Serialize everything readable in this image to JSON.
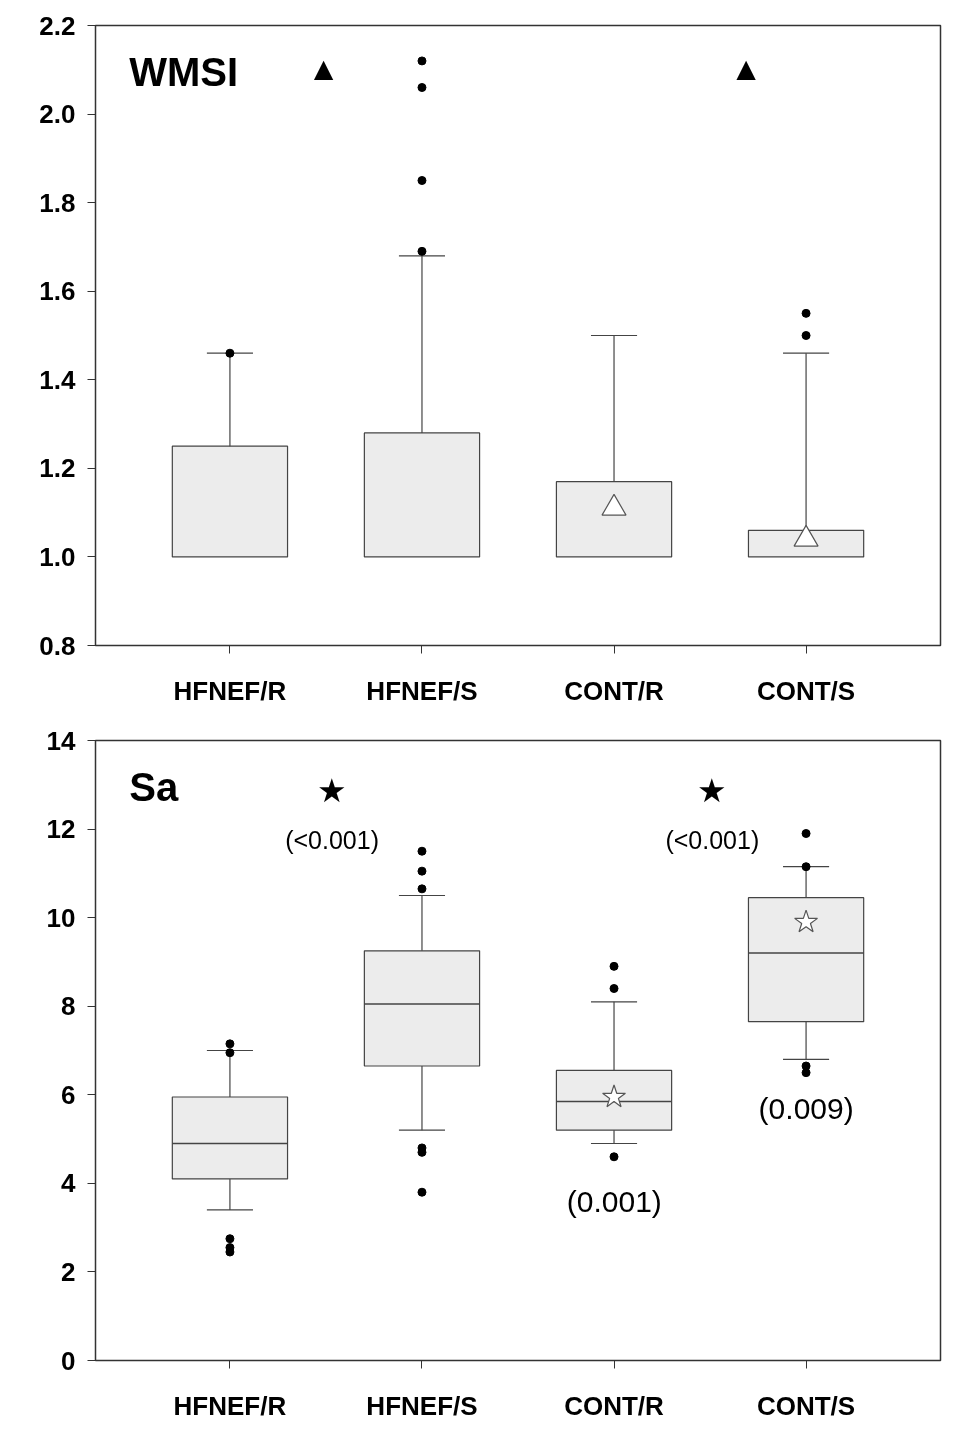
{
  "chart_data": [
    {
      "type": "box",
      "title": "WMSI",
      "categories": [
        "HFNEF/R",
        "HFNEF/S",
        "CONT/R",
        "CONT/S"
      ],
      "ylim": [
        0.8,
        2.2
      ],
      "yticks": [
        {
          "value": 0.8,
          "label": "0.8"
        },
        {
          "value": 1.0,
          "label": "1.0"
        },
        {
          "value": 1.2,
          "label": "1.2"
        },
        {
          "value": 1.4,
          "label": "1.4"
        },
        {
          "value": 1.6,
          "label": "1.6"
        },
        {
          "value": 1.8,
          "label": "1.8"
        },
        {
          "value": 2.0,
          "label": "2.0"
        },
        {
          "value": 2.2,
          "label": "2.2"
        }
      ],
      "grid": false,
      "marker": "triangle",
      "boxes": [
        {
          "low": 1.0,
          "q1": 1.0,
          "median": 1.0,
          "q3": 1.25,
          "high": 1.46,
          "outliers": [
            1.46
          ]
        },
        {
          "low": 1.0,
          "q1": 1.0,
          "median": 1.0,
          "q3": 1.28,
          "high": 1.68,
          "outliers": [
            1.69,
            1.85,
            2.06,
            2.12
          ]
        },
        {
          "low": 1.0,
          "q1": 1.0,
          "median": 1.0,
          "q3": 1.17,
          "high": 1.5,
          "mean": 1.11
        },
        {
          "low": 1.0,
          "q1": 1.0,
          "median": 1.0,
          "q3": 1.06,
          "high": 1.46,
          "mean": 1.04,
          "outliers": [
            1.5,
            1.55
          ]
        }
      ],
      "annotations": [
        "▲",
        "▲"
      ]
    },
    {
      "type": "box",
      "title": "Sa",
      "categories": [
        "HFNEF/R",
        "HFNEF/S",
        "CONT/R",
        "CONT/S"
      ],
      "ylim": [
        0,
        14
      ],
      "yticks": [
        0,
        2,
        4,
        6,
        8,
        10,
        12,
        14
      ],
      "grid": false,
      "marker": "star",
      "boxes": [
        {
          "low": 3.4,
          "q1": 4.1,
          "median": 4.9,
          "q3": 5.95,
          "high": 7.0,
          "outliers": [
            7.15,
            6.95,
            2.75,
            2.55,
            2.45
          ]
        },
        {
          "low": 5.2,
          "q1": 6.65,
          "median": 8.05,
          "q3": 9.25,
          "high": 10.5,
          "outliers": [
            11.5,
            11.05,
            10.65,
            4.8,
            4.7,
            3.8
          ]
        },
        {
          "low": 4.9,
          "q1": 5.2,
          "median": 5.85,
          "q3": 6.55,
          "high": 8.1,
          "mean": 5.95,
          "outliers": [
            8.9,
            8.4,
            4.6
          ]
        },
        {
          "low": 6.8,
          "q1": 7.65,
          "median": 9.2,
          "q3": 10.45,
          "high": 11.15,
          "mean": 9.9,
          "outliers": [
            11.9,
            11.15,
            6.65,
            6.5
          ]
        }
      ],
      "annotations": [
        "★",
        "(<0.001)",
        "★",
        "(<0.001)",
        "(0.001)",
        "(0.009)"
      ]
    }
  ]
}
